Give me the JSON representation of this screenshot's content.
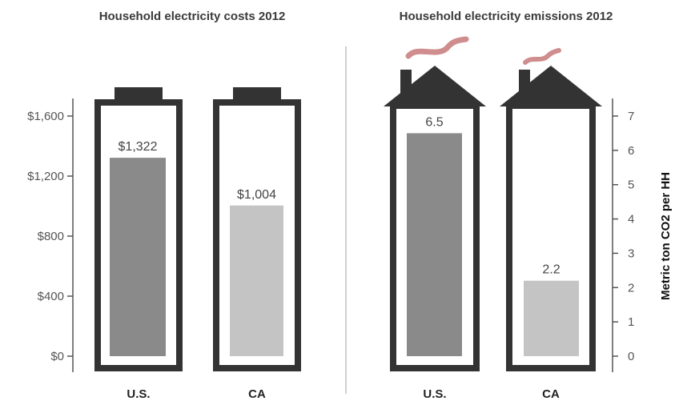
{
  "chart_data": [
    {
      "type": "bar",
      "title": "Household electricity costs 2012",
      "categories": [
        "U.S.",
        "CA"
      ],
      "values": [
        1322,
        1004
      ],
      "data_labels": [
        "$1,322",
        "$1,004"
      ],
      "ylabel": "",
      "ylim": [
        0,
        1600
      ],
      "yticks": [
        0,
        400,
        800,
        1200,
        1600
      ],
      "ytick_labels": [
        "$0",
        "$400",
        "$800",
        "$1,200",
        "$1,600"
      ],
      "axis_side": "left",
      "grid": false,
      "colors": [
        "#8a8a8a",
        "#c4c4c4"
      ],
      "frame_color": "#333333"
    },
    {
      "type": "bar",
      "title": "Household electricity emissions 2012",
      "categories": [
        "U.S.",
        "CA"
      ],
      "values": [
        6.5,
        2.2
      ],
      "data_labels": [
        "6.5",
        "2.2"
      ],
      "ylabel": "Metric ton CO2 per HH",
      "ylim": [
        0,
        7
      ],
      "yticks": [
        0,
        1,
        2,
        3,
        4,
        5,
        6,
        7
      ],
      "ytick_labels": [
        "0",
        "1",
        "2",
        "3",
        "4",
        "5",
        "6",
        "7"
      ],
      "axis_side": "right",
      "grid": false,
      "colors": [
        "#8a8a8a",
        "#c4c4c4"
      ],
      "frame_color": "#333333",
      "smoke_color": "#cf8d8d"
    }
  ]
}
